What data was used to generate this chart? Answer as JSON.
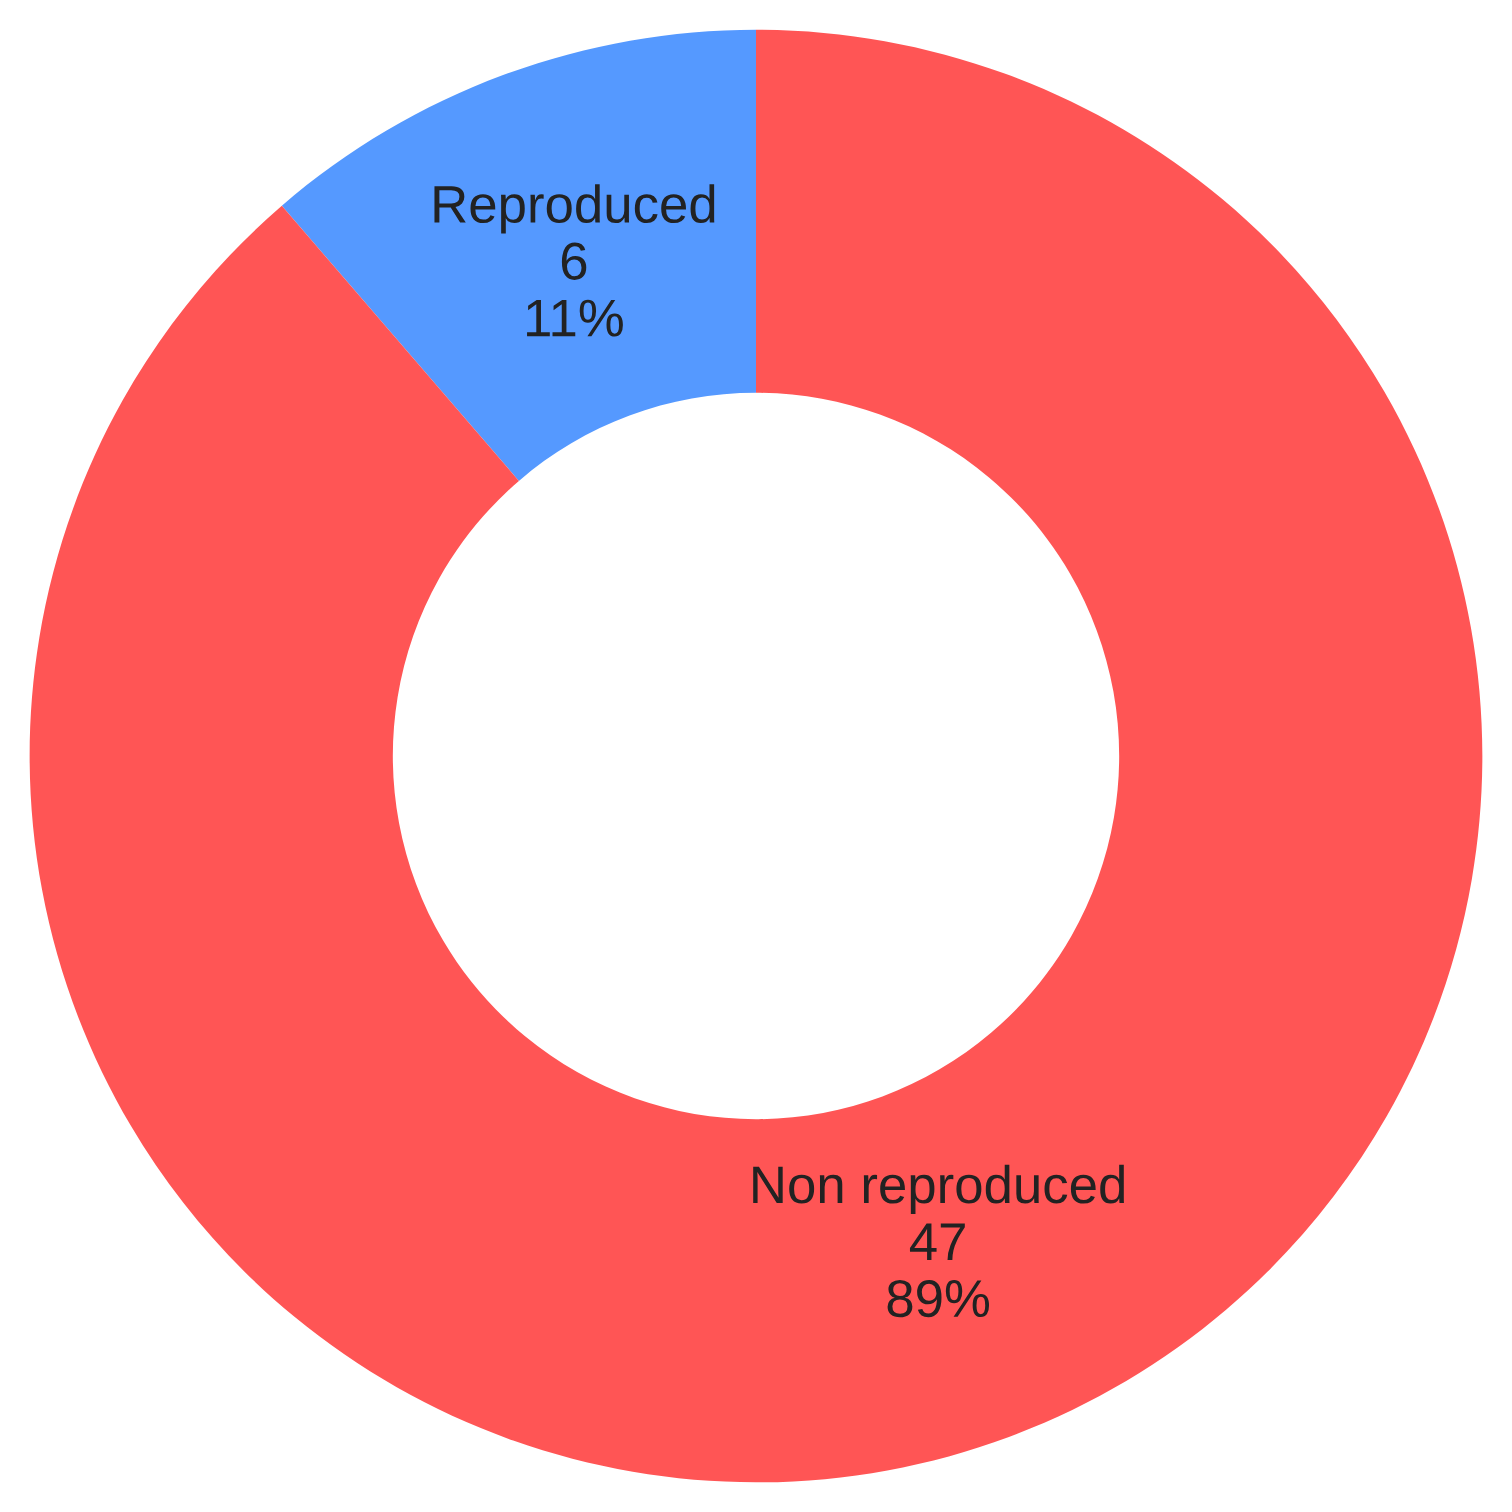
{
  "chart_data": {
    "type": "donut",
    "categories": [
      "Reproduced",
      "Non reproduced"
    ],
    "values": [
      6,
      47
    ],
    "colors": [
      "#5599ff",
      "#ff5555"
    ],
    "value_labels": [
      "6\n11%",
      "47\n89%"
    ]
  }
}
